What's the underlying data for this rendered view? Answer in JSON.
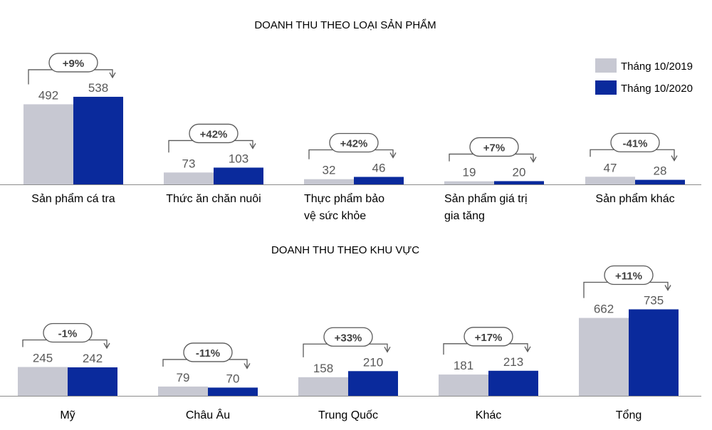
{
  "colors": {
    "y2019": "#c7c8d2",
    "y2020": "#0a2a9c",
    "arrow": "#595959"
  },
  "legend": [
    {
      "label": "Tháng 10/2019",
      "color": "#c7c8d2"
    },
    {
      "label": "Tháng 10/2020",
      "color": "#0a2a9c"
    }
  ],
  "chart_data": [
    {
      "type": "bar",
      "title": "DOANH THU THEO LOẠI SẢN PHẨM",
      "categories": [
        [
          "Sản phẩm cá tra"
        ],
        [
          "Thức ăn chăn nuôi"
        ],
        [
          "Thực phẩm bảo",
          "vệ sức khỏe"
        ],
        [
          "Sản phẩm giá trị",
          "gia tăng"
        ],
        [
          "Sản phẩm khác"
        ]
      ],
      "series": [
        {
          "name": "Tháng 10/2019",
          "values": [
            492,
            73,
            32,
            19,
            47
          ]
        },
        {
          "name": "Tháng 10/2020",
          "values": [
            538,
            103,
            46,
            20,
            28
          ]
        }
      ],
      "value_labels": [
        [
          "492",
          "73",
          "32",
          "19",
          "47"
        ],
        [
          "538",
          "103",
          "46",
          "20",
          "28"
        ]
      ],
      "changes": [
        "+9%",
        "+42%",
        "+42%",
        "+7%",
        "-41%"
      ],
      "legend_position": "top-right"
    },
    {
      "type": "bar",
      "title": "DOANH THU THEO KHU VỰC",
      "categories": [
        [
          "Mỹ"
        ],
        [
          "Châu Âu"
        ],
        [
          "Trung Quốc"
        ],
        [
          "Khác"
        ],
        [
          "Tổng"
        ]
      ],
      "series": [
        {
          "name": "Tháng 10/2019",
          "values": [
            245,
            79,
            158,
            181,
            662
          ]
        },
        {
          "name": "Tháng 10/2020",
          "values": [
            242,
            70,
            210,
            213,
            735
          ]
        }
      ],
      "value_labels": [
        [
          "245",
          "79",
          "158",
          "181",
          "662"
        ],
        [
          "242",
          "70",
          "210",
          "213",
          "735"
        ]
      ],
      "changes": [
        "-1%",
        "-11%",
        "+33%",
        "+17%",
        "+11%"
      ]
    }
  ]
}
